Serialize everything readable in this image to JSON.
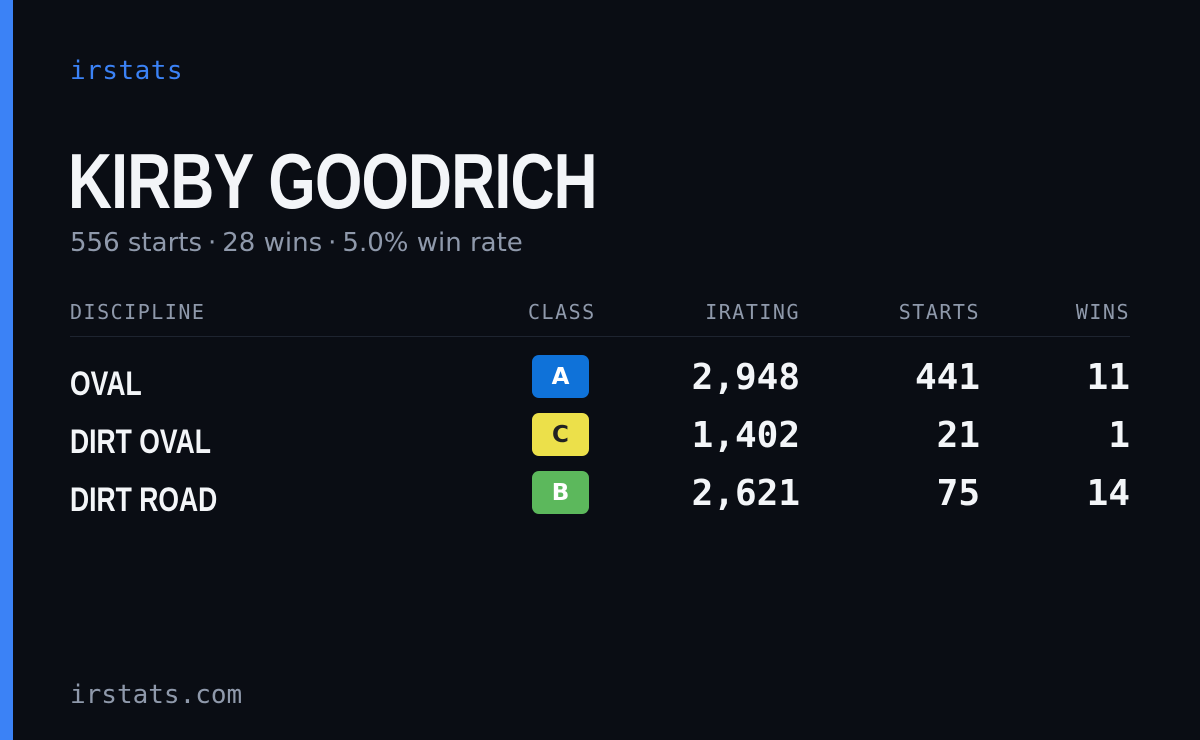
{
  "brand": "irstats",
  "driver": {
    "name": "KIRBY GOODRICH"
  },
  "summary": {
    "starts": "556 starts",
    "wins": "28 wins",
    "win_rate": "5.0% win rate",
    "separator": "·"
  },
  "table": {
    "headers": {
      "discipline": "DISCIPLINE",
      "class": "CLASS",
      "irating": "IRATING",
      "starts": "STARTS",
      "wins": "WINS"
    },
    "rows": [
      {
        "discipline": "OVAL",
        "class": "A",
        "class_bg": "#0f72d9",
        "class_fg": "#ffffff",
        "irating": "2,948",
        "starts": "441",
        "wins": "11"
      },
      {
        "discipline": "DIRT OVAL",
        "class": "C",
        "class_bg": "#ece04a",
        "class_fg": "#222222",
        "irating": "1,402",
        "starts": "21",
        "wins": "1"
      },
      {
        "discipline": "DIRT ROAD",
        "class": "B",
        "class_bg": "#5cb85c",
        "class_fg": "#ffffff",
        "irating": "2,621",
        "starts": "75",
        "wins": "14"
      }
    ]
  },
  "footer": {
    "url": "irstats.com"
  },
  "colors": {
    "background": "#0a0d14",
    "accent": "#3b82f6",
    "muted_text": "#8f99ab",
    "primary_text": "#f3f5f8"
  }
}
